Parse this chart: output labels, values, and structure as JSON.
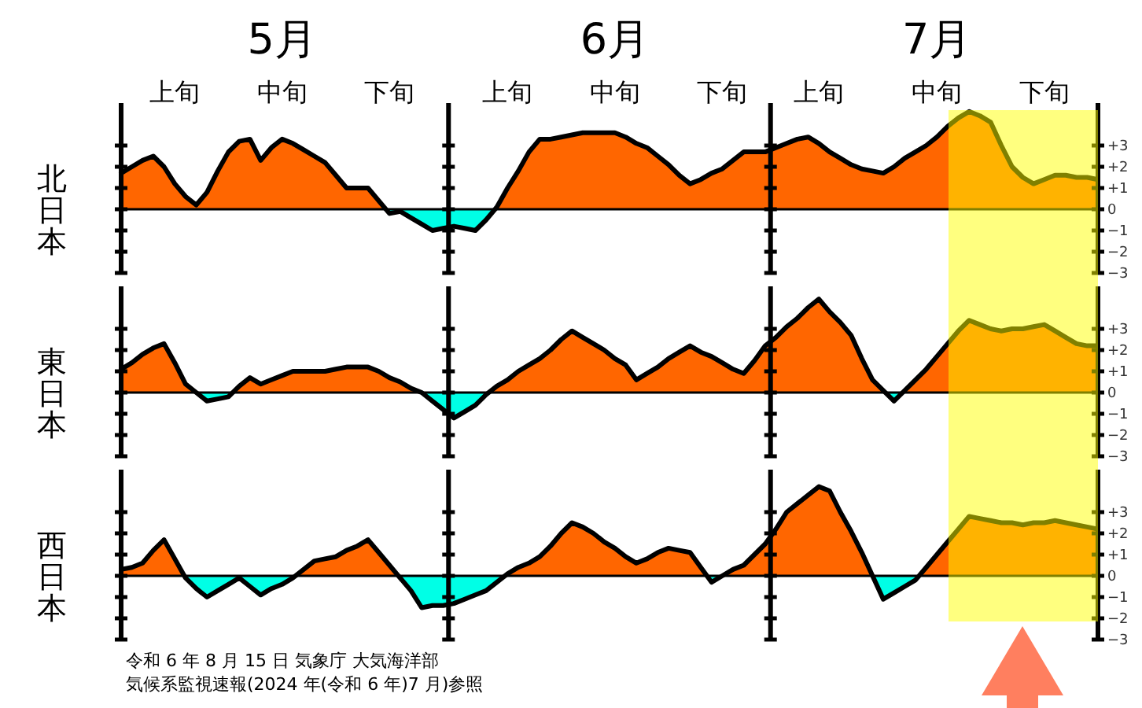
{
  "chart_data": [
    {
      "type": "area",
      "ylabel": "北日本",
      "ylim": [
        -3,
        5
      ],
      "categories": [
        null,
        null,
        null,
        null,
        null,
        "上旬",
        null,
        null,
        null,
        null,
        null,
        null,
        null,
        null,
        null,
        "中旬",
        null,
        null,
        null,
        null,
        null,
        null,
        null,
        null,
        null,
        "下旬",
        null,
        null,
        null,
        null,
        null,
        null,
        null,
        null,
        null,
        null,
        "上旬",
        null,
        null,
        null,
        null,
        null,
        null,
        null,
        null,
        null,
        "中旬",
        null,
        null,
        null,
        null,
        null,
        null,
        null,
        null,
        null,
        "下旬",
        null,
        null,
        null,
        null,
        null,
        null,
        null,
        null,
        "上旬",
        null,
        null,
        null,
        null,
        null,
        null,
        null,
        null,
        null,
        null,
        "中旬",
        null,
        null,
        null,
        null,
        null,
        null,
        null,
        null,
        null,
        "下旬",
        null,
        null,
        null,
        null,
        null
      ],
      "yticks": [
        {
          "value": 3,
          "label": "+3"
        },
        {
          "value": 2,
          "label": "+2"
        },
        {
          "value": 1,
          "label": "+1"
        },
        {
          "value": 0,
          "label": "0"
        },
        {
          "value": -1,
          "label": "−1"
        },
        {
          "value": -2,
          "label": "−2"
        },
        {
          "value": -3,
          "label": "−3"
        }
      ],
      "annotations": [
        "5月",
        "6月",
        "7月"
      ],
      "series": [
        {
          "color": "#000000",
          "values": [
            1.7,
            2.0,
            2.3,
            2.5,
            2.0,
            1.2,
            0.6,
            0.2,
            0.8,
            1.8,
            2.7,
            3.2,
            3.3,
            2.3,
            2.9,
            3.3,
            3.1,
            2.8,
            2.5,
            2.2,
            1.6,
            1.0,
            1.0,
            1.0,
            0.4,
            -0.2,
            -0.1,
            -0.4,
            -0.7,
            -1.0,
            -0.9,
            -0.8,
            -0.9,
            -1.0,
            -0.5,
            0.1,
            1.0,
            1.8,
            2.7,
            3.3,
            3.3,
            3.4,
            3.5,
            3.6,
            3.6,
            3.6,
            3.6,
            3.4,
            3.1,
            2.9,
            2.5,
            2.1,
            1.6,
            1.2,
            1.4,
            1.7,
            1.9,
            2.3,
            2.7,
            2.7,
            2.7,
            2.9,
            3.1,
            3.3,
            3.4,
            3.1,
            2.7,
            2.4,
            2.1,
            1.9,
            1.8,
            1.7,
            2.0,
            2.4,
            2.7,
            3.0,
            3.4,
            3.9,
            4.3,
            4.6,
            4.4,
            4.1,
            3.0,
            2.0,
            1.5,
            1.2,
            1.4,
            1.6,
            1.6,
            1.5,
            1.5,
            1.4
          ],
          "colors": [
            "#ff6600",
            "#ff6600",
            "#ff6600",
            "#ff6600",
            "#ff6600",
            "#ff6600",
            "#ff6600",
            "#ff6600",
            "#ff6600",
            "#ff6600",
            "#ff6600",
            "#ff6600",
            "#ff6600",
            "#ff6600",
            "#ff6600",
            "#ff6600",
            "#ff6600",
            "#ff6600",
            "#ff6600",
            "#ff6600",
            "#ff6600",
            "#ff6600",
            "#ff6600",
            "#ff6600",
            "#ff6600",
            "#00ffe6",
            "#00ffe6",
            "#00ffe6",
            "#00ffe6",
            "#00ffe6",
            "#00ffe6",
            "#00ffe6",
            "#00ffe6",
            "#00ffe6",
            "#00ffe6",
            "#ff6600",
            "#ff6600",
            "#ff6600",
            "#ff6600",
            "#ff6600",
            "#ff6600",
            "#ff6600",
            "#ff6600",
            "#ff6600",
            "#ff6600",
            "#ff6600",
            "#ff6600",
            "#ff6600",
            "#ff6600",
            "#ff6600",
            "#ff6600",
            "#ff6600",
            "#ff6600",
            "#ff6600",
            "#ff6600",
            "#ff6600",
            "#ff6600",
            "#ff6600",
            "#ff6600",
            "#ff6600",
            "#ff6600",
            "#ff6600",
            "#ff6600",
            "#ff6600",
            "#ff6600",
            "#ff6600",
            "#ff6600",
            "#ff6600",
            "#ff6600",
            "#ff6600",
            "#ff6600",
            "#ff6600",
            "#ff6600",
            "#ff6600",
            "#ff6600",
            "#ff6600",
            "#ff6600",
            "#ff6600",
            "#ff6600",
            "#ff6600",
            "#ff6600",
            "#ff6600",
            "#ff6600",
            "#ff6600",
            "#ff6600",
            "#ff6600",
            "#ff6600",
            "#ff6600",
            "#ff6600",
            "#ff6600",
            "#ff6600",
            "#ff6600"
          ]
        }
      ]
    },
    {
      "type": "area",
      "ylabel": "東日本",
      "ylim": [
        -3,
        5
      ],
      "tick_labels": "y",
      "categories": [
        null,
        null,
        null,
        null,
        null,
        null,
        null,
        null,
        null,
        null,
        null,
        null,
        null,
        null,
        null,
        null,
        null,
        null,
        null,
        null,
        null,
        null,
        null,
        null,
        null,
        null,
        null,
        null,
        null,
        null,
        null,
        null,
        null,
        null,
        null,
        null,
        null,
        null,
        null,
        null,
        null,
        null,
        null,
        null,
        null,
        null,
        null,
        null,
        null,
        null,
        null,
        null,
        null,
        null,
        null,
        null,
        null,
        null,
        null,
        null,
        null,
        null,
        null,
        null,
        null,
        null,
        null,
        null,
        null,
        null,
        null,
        null,
        null,
        null,
        null,
        null,
        null,
        null,
        null,
        null,
        null,
        null,
        null,
        null,
        null,
        null,
        null,
        null,
        null,
        null,
        null,
        null
      ],
      "yticks": [
        {
          "value": 3,
          "label": "+3"
        },
        {
          "value": 2,
          "label": "+2"
        },
        {
          "value": 1,
          "label": "+1"
        },
        {
          "value": 0,
          "label": "0"
        },
        {
          "value": -1,
          "label": "−1"
        },
        {
          "value": -2,
          "label": "−2"
        },
        {
          "value": -3,
          "label": "−3"
        }
      ],
      "series": [
        {
          "color": "#000000",
          "values": [
            1.1,
            1.4,
            1.8,
            2.1,
            2.3,
            1.4,
            0.4,
            0.0,
            -0.4,
            -0.3,
            -0.2,
            0.3,
            0.7,
            0.4,
            0.6,
            0.8,
            1.0,
            1.0,
            1.0,
            1.0,
            1.1,
            1.2,
            1.2,
            1.2,
            1.0,
            0.7,
            0.5,
            0.2,
            0.0,
            -0.4,
            -0.8,
            -1.2,
            -0.9,
            -0.6,
            -0.1,
            0.3,
            0.6,
            1.0,
            1.3,
            1.6,
            2.0,
            2.5,
            2.9,
            2.6,
            2.3,
            2.0,
            1.6,
            1.3,
            0.6,
            0.9,
            1.2,
            1.6,
            1.9,
            2.2,
            1.9,
            1.7,
            1.4,
            1.1,
            0.9,
            1.5,
            2.2,
            2.6,
            3.1,
            3.5,
            4.0,
            4.4,
            3.8,
            3.3,
            2.7,
            1.6,
            0.6,
            0.1,
            -0.4,
            0.1,
            0.6,
            1.1,
            1.7,
            2.3,
            2.9,
            3.4,
            3.2,
            3.0,
            2.9,
            3.0,
            3.0,
            3.1,
            3.2,
            2.9,
            2.6,
            2.3,
            2.2,
            2.2
          ],
          "colors": [
            "#ff6600",
            "#ff6600",
            "#ff6600",
            "#ff6600",
            "#ff6600",
            "#ff6600",
            "#ff6600",
            "#ff6600",
            "#00ffe6",
            "#00ffe6",
            "#00ffe6",
            "#ff6600",
            "#ff6600",
            "#ff6600",
            "#ff6600",
            "#ff6600",
            "#ff6600",
            "#ff6600",
            "#ff6600",
            "#ff6600",
            "#ff6600",
            "#ff6600",
            "#ff6600",
            "#ff6600",
            "#ff6600",
            "#ff6600",
            "#ff6600",
            "#ff6600",
            "#ff6600",
            "#00ffe6",
            "#00ffe6",
            "#00ffe6",
            "#00ffe6",
            "#00ffe6",
            "#00ffe6",
            "#ff6600",
            "#ff6600",
            "#ff6600",
            "#ff6600",
            "#ff6600",
            "#ff6600",
            "#ff6600",
            "#ff6600",
            "#ff6600",
            "#ff6600",
            "#ff6600",
            "#ff6600",
            "#ff6600",
            "#ff6600",
            "#ff6600",
            "#ff6600",
            "#ff6600",
            "#ff6600",
            "#ff6600",
            "#ff6600",
            "#ff6600",
            "#ff6600",
            "#ff6600",
            "#ff6600",
            "#ff6600",
            "#ff6600",
            "#ff6600",
            "#ff6600",
            "#ff6600",
            "#ff6600",
            "#ff6600",
            "#ff6600",
            "#ff6600",
            "#ff6600",
            "#ff6600",
            "#ff6600",
            "#ff6600",
            "#00ffe6",
            "#ff6600",
            "#ff6600",
            "#ff6600",
            "#ff6600",
            "#ff6600",
            "#ff6600",
            "#ff6600",
            "#ff6600",
            "#ff6600",
            "#ff6600",
            "#ff6600",
            "#ff6600",
            "#ff6600",
            "#ff6600",
            "#ff6600",
            "#ff6600",
            "#ff6600",
            "#ff6600",
            "#ff6600"
          ]
        }
      ]
    },
    {
      "type": "area",
      "ylabel": "西日本",
      "ylim": [
        -3,
        5
      ],
      "tick_labels": "y",
      "categories": [
        null,
        null,
        null,
        null,
        null,
        null,
        null,
        null,
        null,
        null,
        null,
        null,
        null,
        null,
        null,
        null,
        null,
        null,
        null,
        null,
        null,
        null,
        null,
        null,
        null,
        null,
        null,
        null,
        null,
        null,
        null,
        null,
        null,
        null,
        null,
        null,
        null,
        null,
        null,
        null,
        null,
        null,
        null,
        null,
        null,
        null,
        null,
        null,
        null,
        null,
        null,
        null,
        null,
        null,
        null,
        null,
        null,
        null,
        null,
        null,
        null,
        null,
        null,
        null,
        null,
        null,
        null,
        null,
        null,
        null,
        null,
        null,
        null,
        null,
        null,
        null,
        null,
        null,
        null,
        null,
        null,
        null,
        null,
        null,
        null,
        null,
        null,
        null,
        null,
        null,
        null,
        null
      ],
      "yticks": [
        {
          "value": 3,
          "label": "+3"
        },
        {
          "value": 2,
          "label": "+2"
        },
        {
          "value": 1,
          "label": "+1"
        },
        {
          "value": 0,
          "label": "0"
        },
        {
          "value": -1,
          "label": "−1"
        },
        {
          "value": -2,
          "label": "−2"
        },
        {
          "value": -3,
          "label": "−3"
        }
      ],
      "annotations": [
        "令和 6 年 8 月 15 日 気象庁 大気海洋部",
        "気候系監視速報(2024 年(令和 6 年)7 月)参照"
      ],
      "series": [
        {
          "color": "#000000",
          "values": [
            0.3,
            0.4,
            0.6,
            1.2,
            1.7,
            0.8,
            -0.1,
            -0.6,
            -1.0,
            -0.7,
            -0.4,
            -0.1,
            -0.5,
            -0.9,
            -0.6,
            -0.4,
            -0.1,
            0.3,
            0.7,
            0.8,
            0.9,
            1.2,
            1.4,
            1.7,
            1.1,
            0.5,
            -0.1,
            -0.7,
            -1.5,
            -1.4,
            -1.4,
            -1.3,
            -1.1,
            -0.9,
            -0.7,
            -0.3,
            0.1,
            0.4,
            0.6,
            0.9,
            1.4,
            2.0,
            2.5,
            2.3,
            2.0,
            1.6,
            1.3,
            0.9,
            0.6,
            0.8,
            1.1,
            1.3,
            1.2,
            1.1,
            0.4,
            -0.3,
            0.0,
            0.3,
            0.5,
            1.0,
            1.5,
            2.2,
            3.0,
            3.4,
            3.8,
            4.2,
            4.0,
            3.0,
            2.1,
            1.1,
            0.0,
            -1.1,
            -0.8,
            -0.5,
            -0.2,
            0.4,
            1.0,
            1.6,
            2.2,
            2.8,
            2.7,
            2.6,
            2.5,
            2.5,
            2.4,
            2.5,
            2.5,
            2.6,
            2.5,
            2.4,
            2.3,
            2.2
          ],
          "colors": [
            "#ff6600",
            "#ff6600",
            "#ff6600",
            "#ff6600",
            "#ff6600",
            "#ff6600",
            "#00ffe6",
            "#00ffe6",
            "#00ffe6",
            "#00ffe6",
            "#00ffe6",
            "#00ffe6",
            "#00ffe6",
            "#00ffe6",
            "#00ffe6",
            "#00ffe6",
            "#00ffe6",
            "#ff6600",
            "#ff6600",
            "#ff6600",
            "#ff6600",
            "#ff6600",
            "#ff6600",
            "#ff6600",
            "#ff6600",
            "#ff6600",
            "#00ffe6",
            "#00ffe6",
            "#00ffe6",
            "#00ffe6",
            "#00ffe6",
            "#00ffe6",
            "#00ffe6",
            "#00ffe6",
            "#00ffe6",
            "#00ffe6",
            "#ff6600",
            "#ff6600",
            "#ff6600",
            "#ff6600",
            "#ff6600",
            "#ff6600",
            "#ff6600",
            "#ff6600",
            "#ff6600",
            "#ff6600",
            "#ff6600",
            "#ff6600",
            "#ff6600",
            "#ff6600",
            "#ff6600",
            "#ff6600",
            "#ff6600",
            "#ff6600",
            "#ff6600",
            "#00ffe6",
            "#ff6600",
            "#ff6600",
            "#ff6600",
            "#ff6600",
            "#ff6600",
            "#ff6600",
            "#ff6600",
            "#ff6600",
            "#ff6600",
            "#ff6600",
            "#ff6600",
            "#ff6600",
            "#ff6600",
            "#ff6600",
            "#ff6600",
            "#00ffe6",
            "#00ffe6",
            "#00ffe6",
            "#00ffe6",
            "#ff6600",
            "#ff6600",
            "#ff6600",
            "#ff6600",
            "#ff6600",
            "#ff6600",
            "#ff6600",
            "#ff6600",
            "#ff6600",
            "#ff6600",
            "#ff6600",
            "#ff6600",
            "#ff6600",
            "#ff6600",
            "#ff6600",
            "#ff6600",
            "#ff6600"
          ]
        }
      ]
    }
  ]
}
